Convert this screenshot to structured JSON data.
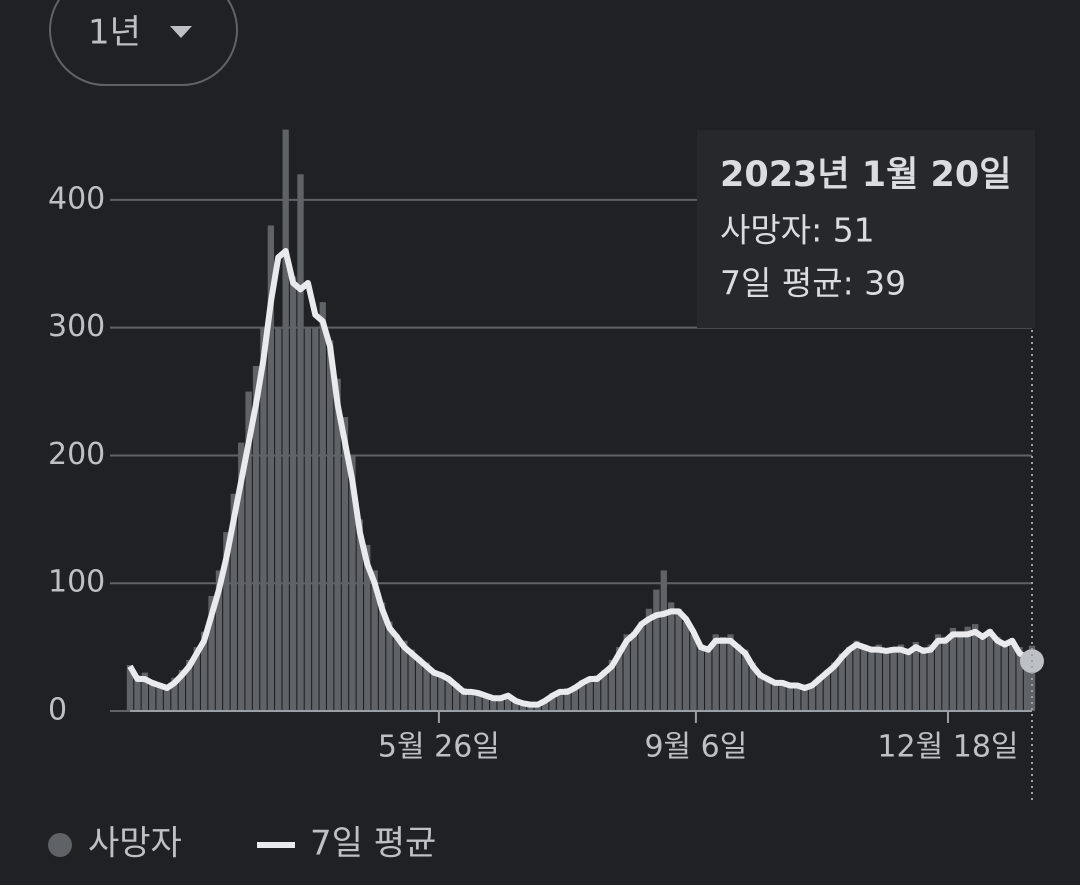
{
  "range_selector": "1년",
  "chart_data": {
    "type": "bar-line",
    "x": [
      0,
      3,
      6,
      9,
      12,
      15,
      18,
      21,
      24,
      27,
      30,
      33,
      36,
      39,
      42,
      45,
      48,
      51,
      54,
      57,
      60,
      63,
      66,
      69,
      72,
      75,
      78,
      81,
      84,
      87,
      90,
      93,
      96,
      99,
      102,
      105,
      108,
      111,
      114,
      117,
      120,
      123,
      126,
      129,
      132,
      135,
      138,
      141,
      144,
      147,
      150,
      153,
      156,
      159,
      162,
      165,
      168,
      171,
      174,
      177,
      180,
      183,
      186,
      189,
      192,
      195,
      198,
      201,
      204,
      207,
      210,
      213,
      216,
      219,
      222,
      225,
      228,
      231,
      234,
      237,
      240,
      243,
      246,
      249,
      252,
      255,
      258,
      261,
      264,
      267,
      270,
      273,
      276,
      279,
      282,
      285,
      288,
      291,
      294,
      297,
      300,
      303,
      306,
      309,
      312,
      315,
      318,
      321,
      324,
      327,
      330,
      333,
      336,
      339,
      342,
      345,
      348,
      351,
      354,
      357,
      360,
      363,
      365
    ],
    "series": [
      {
        "name": "사망자",
        "color": "#5f6368",
        "values": [
          36,
          28,
          30,
          24,
          22,
          20,
          26,
          32,
          40,
          50,
          62,
          90,
          110,
          140,
          170,
          210,
          250,
          270,
          300,
          380,
          300,
          455,
          340,
          420,
          300,
          300,
          320,
          290,
          260,
          230,
          200,
          150,
          130,
          110,
          85,
          70,
          60,
          55,
          48,
          42,
          38,
          32,
          30,
          26,
          22,
          18,
          16,
          15,
          13,
          12,
          11,
          13,
          9,
          7,
          6,
          6,
          9,
          14,
          16,
          18,
          20,
          24,
          26,
          28,
          32,
          40,
          50,
          60,
          62,
          70,
          80,
          95,
          110,
          85,
          80,
          70,
          60,
          52,
          50,
          60,
          58,
          60,
          52,
          48,
          38,
          30,
          26,
          24,
          22,
          22,
          21,
          20,
          22,
          27,
          32,
          38,
          45,
          50,
          55,
          52,
          50,
          52,
          48,
          50,
          52,
          48,
          54,
          50,
          52,
          60,
          58,
          65,
          62,
          66,
          68,
          60,
          64,
          58,
          55,
          56,
          50,
          45,
          51
        ]
      },
      {
        "name": "7일 평균",
        "color": "#e8eaed",
        "values": [
          35,
          25,
          25,
          22,
          20,
          18,
          22,
          28,
          35,
          45,
          55,
          75,
          95,
          120,
          150,
          180,
          210,
          240,
          275,
          320,
          355,
          360,
          335,
          330,
          335,
          310,
          305,
          285,
          240,
          210,
          180,
          140,
          115,
          100,
          80,
          65,
          58,
          50,
          45,
          40,
          35,
          30,
          28,
          25,
          20,
          15,
          15,
          14,
          12,
          10,
          10,
          12,
          8,
          6,
          5,
          5,
          8,
          12,
          15,
          15,
          18,
          22,
          25,
          25,
          30,
          35,
          45,
          55,
          60,
          68,
          72,
          75,
          76,
          78,
          78,
          72,
          62,
          50,
          48,
          55,
          55,
          55,
          50,
          45,
          35,
          28,
          25,
          22,
          22,
          20,
          20,
          18,
          20,
          25,
          30,
          35,
          42,
          48,
          52,
          50,
          48,
          48,
          47,
          48,
          48,
          46,
          50,
          47,
          48,
          55,
          55,
          60,
          60,
          60,
          62,
          58,
          62,
          55,
          52,
          55,
          45,
          42,
          39
        ]
      }
    ],
    "xlim": [
      0,
      365
    ],
    "xticks": [
      {
        "value": 125,
        "label": "5월 26일"
      },
      {
        "value": 229,
        "label": "9월 6일"
      },
      {
        "value": 331,
        "label": "12월 18일"
      }
    ],
    "ylim": [
      0,
      450
    ],
    "yticks": [
      0,
      100,
      200,
      300,
      400
    ],
    "grid": true,
    "tooltip": {
      "title": "2023년 1월 20일",
      "lines": [
        "사망자: 51",
        "7일 평균: 39"
      ]
    }
  }
}
